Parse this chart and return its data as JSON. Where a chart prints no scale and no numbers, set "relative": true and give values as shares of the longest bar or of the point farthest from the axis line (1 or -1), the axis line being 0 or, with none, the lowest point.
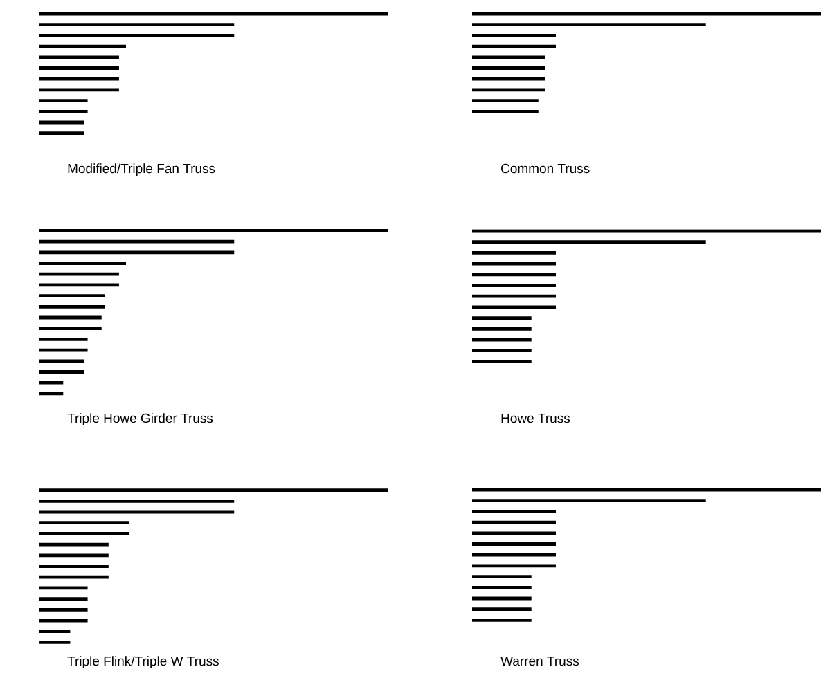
{
  "chart_data": [
    {
      "type": "bar",
      "orientation": "horizontal",
      "relative": true,
      "title": "Modified/Triple Fan Truss",
      "color": "#000000",
      "categories": [
        null,
        null,
        null,
        null,
        null,
        null,
        null,
        null,
        null,
        null,
        null,
        null
      ],
      "values": [
        1,
        0.56,
        0.56,
        0.25,
        0.23,
        0.23,
        0.23,
        0.23,
        0.14,
        0.14,
        0.13,
        0.13
      ]
    },
    {
      "type": "bar",
      "orientation": "horizontal",
      "relative": true,
      "title": "Common Truss",
      "color": "#000000",
      "categories": [
        null,
        null,
        null,
        null,
        null,
        null,
        null,
        null,
        null,
        null
      ],
      "values": [
        1,
        0.67,
        0.24,
        0.24,
        0.21,
        0.21,
        0.21,
        0.21,
        0.19,
        0.19
      ]
    },
    {
      "type": "bar",
      "orientation": "horizontal",
      "relative": true,
      "title": "Triple Howe Girder Truss",
      "color": "#000000",
      "categories": [
        null,
        null,
        null,
        null,
        null,
        null,
        null,
        null,
        null,
        null,
        null,
        null,
        null,
        null,
        null,
        null
      ],
      "values": [
        1,
        0.56,
        0.56,
        0.25,
        0.23,
        0.23,
        0.19,
        0.19,
        0.18,
        0.18,
        0.14,
        0.14,
        0.13,
        0.13,
        0.07,
        0.07
      ]
    },
    {
      "type": "bar",
      "orientation": "horizontal",
      "relative": true,
      "title": "Howe Truss",
      "color": "#000000",
      "categories": [
        null,
        null,
        null,
        null,
        null,
        null,
        null,
        null,
        null,
        null,
        null,
        null,
        null
      ],
      "values": [
        1,
        0.67,
        0.24,
        0.24,
        0.24,
        0.24,
        0.24,
        0.24,
        0.17,
        0.17,
        0.17,
        0.17,
        0.17
      ]
    },
    {
      "type": "bar",
      "orientation": "horizontal",
      "relative": true,
      "title": "Triple Flink/Triple W Truss",
      "color": "#000000",
      "categories": [
        null,
        null,
        null,
        null,
        null,
        null,
        null,
        null,
        null,
        null,
        null,
        null,
        null,
        null,
        null
      ],
      "values": [
        1,
        0.56,
        0.56,
        0.26,
        0.26,
        0.2,
        0.2,
        0.2,
        0.2,
        0.14,
        0.14,
        0.14,
        0.14,
        0.09,
        0.09
      ]
    },
    {
      "type": "bar",
      "orientation": "horizontal",
      "relative": true,
      "title": "Warren Truss",
      "color": "#000000",
      "categories": [
        null,
        null,
        null,
        null,
        null,
        null,
        null,
        null,
        null,
        null,
        null,
        null,
        null
      ],
      "values": [
        1,
        0.67,
        0.24,
        0.24,
        0.24,
        0.24,
        0.24,
        0.24,
        0.17,
        0.17,
        0.17,
        0.17,
        0.17
      ]
    }
  ]
}
